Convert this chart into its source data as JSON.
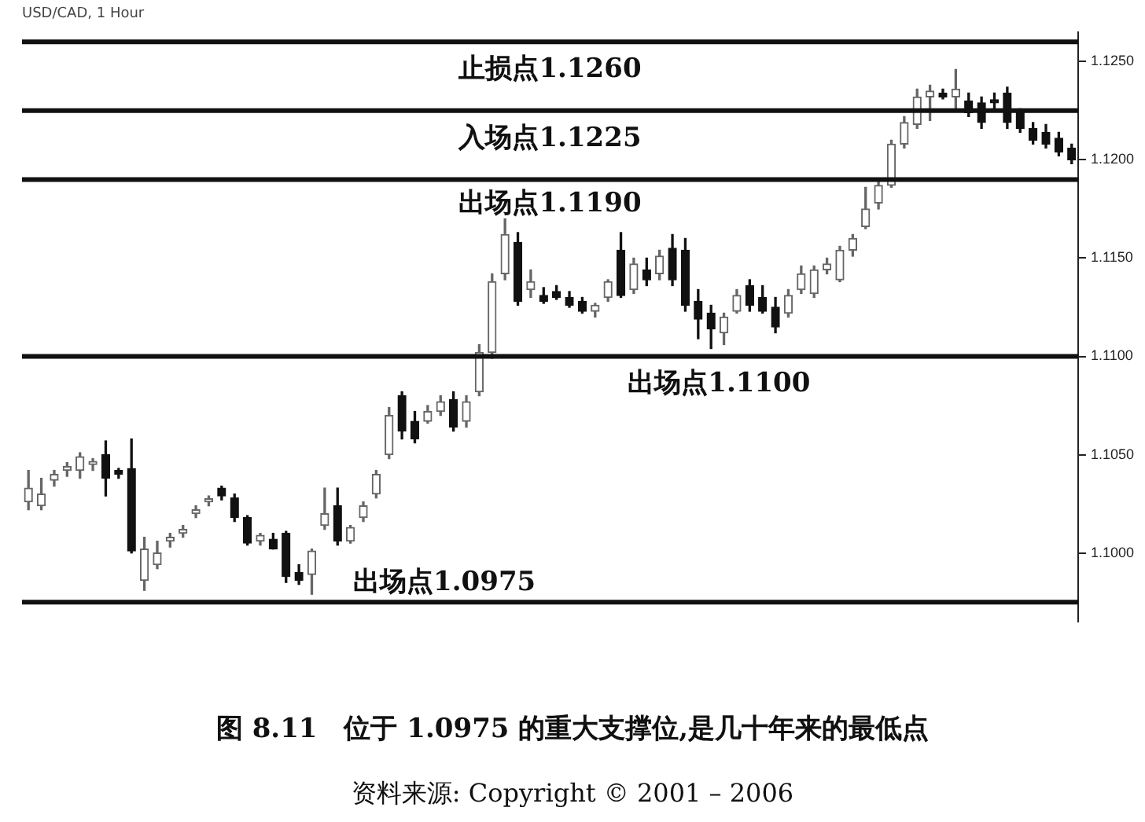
{
  "chart_data": {
    "type": "candlestick",
    "title": "图 8.11　位于 1.0975 的重大支撑位,是几十年来的最低点",
    "subtitle": "USD/CAD, 1 Hour",
    "annotations": [
      "资料来源: Copyright © 2001 – 2006"
    ],
    "categories": [
      null,
      null,
      null,
      null,
      null,
      null,
      null,
      null,
      null,
      null,
      null,
      null,
      null,
      null,
      null,
      null,
      null,
      null,
      null,
      null,
      null,
      null,
      null,
      null,
      null,
      null,
      null,
      null,
      null,
      null,
      null,
      null,
      null,
      null,
      null,
      null,
      null,
      null,
      null,
      null,
      null,
      null,
      null,
      null,
      null,
      null,
      null,
      null,
      null,
      null,
      null,
      null,
      null,
      null,
      null,
      null,
      null,
      null,
      null,
      null,
      null,
      null,
      null,
      null,
      null,
      null,
      null,
      null,
      null,
      null,
      null,
      null,
      null,
      null,
      null,
      null,
      null,
      null,
      null,
      null,
      null,
      null
    ],
    "ohlc": [
      [
        1.1026,
        1.1042,
        1.1022,
        1.1033
      ],
      [
        1.1024,
        1.1038,
        1.1022,
        1.103
      ],
      [
        1.1037,
        1.1042,
        1.1034,
        1.104
      ],
      [
        1.1042,
        1.1046,
        1.1039,
        1.1044
      ],
      [
        1.1042,
        1.1051,
        1.1038,
        1.1049
      ],
      [
        1.1045,
        1.1048,
        1.1042,
        1.1046
      ],
      [
        1.105,
        1.1057,
        1.1029,
        1.1038
      ],
      [
        1.1042,
        1.1043,
        1.1038,
        1.104
      ],
      [
        1.1043,
        1.1058,
        1.1,
        1.1001
      ],
      [
        1.0986,
        1.1008,
        1.0981,
        1.1002
      ],
      [
        1.0994,
        1.1006,
        1.0992,
        1.1
      ],
      [
        1.1006,
        1.101,
        1.1003,
        1.1008
      ],
      [
        1.101,
        1.1014,
        1.1008,
        1.1012
      ],
      [
        1.102,
        1.1024,
        1.1018,
        1.1022
      ],
      [
        1.1026,
        1.1029,
        1.1024,
        1.1027
      ],
      [
        1.1033,
        1.1034,
        1.1027,
        1.1029
      ],
      [
        1.1028,
        1.103,
        1.1016,
        1.1018
      ],
      [
        1.1018,
        1.1019,
        1.1004,
        1.1005
      ],
      [
        1.1006,
        1.101,
        1.1004,
        1.1009
      ],
      [
        1.1007,
        1.101,
        1.1002,
        1.1002
      ],
      [
        1.101,
        1.1011,
        1.0985,
        1.0988
      ],
      [
        1.099,
        1.0994,
        1.0984,
        1.0986
      ],
      [
        1.0989,
        1.1002,
        1.0979,
        1.1001
      ],
      [
        1.1014,
        1.1033,
        1.1012,
        1.102
      ],
      [
        1.1024,
        1.1033,
        1.1004,
        1.1006
      ],
      [
        1.1006,
        1.1014,
        1.1005,
        1.1013
      ],
      [
        1.1018,
        1.1026,
        1.1016,
        1.1024
      ],
      [
        1.103,
        1.1042,
        1.1028,
        1.104
      ],
      [
        1.105,
        1.1074,
        1.1048,
        1.107
      ],
      [
        1.108,
        1.1082,
        1.1058,
        1.1062
      ],
      [
        1.1067,
        1.1072,
        1.1056,
        1.1058
      ],
      [
        1.1067,
        1.1075,
        1.1066,
        1.1072
      ],
      [
        1.1072,
        1.108,
        1.107,
        1.1077
      ],
      [
        1.1078,
        1.1082,
        1.1062,
        1.1064
      ],
      [
        1.1067,
        1.108,
        1.1064,
        1.1077
      ],
      [
        1.1082,
        1.1106,
        1.108,
        1.1102
      ],
      [
        1.1102,
        1.1142,
        1.1099,
        1.1138
      ],
      [
        1.1142,
        1.117,
        1.1139,
        1.1162
      ],
      [
        1.1158,
        1.1163,
        1.1126,
        1.1128
      ],
      [
        1.1134,
        1.1144,
        1.113,
        1.1138
      ],
      [
        1.1131,
        1.1135,
        1.1127,
        1.1128
      ],
      [
        1.1133,
        1.1136,
        1.1129,
        1.113
      ],
      [
        1.113,
        1.1133,
        1.1125,
        1.1126
      ],
      [
        1.1128,
        1.113,
        1.1122,
        1.1123
      ],
      [
        1.1123,
        1.1127,
        1.112,
        1.1126
      ],
      [
        1.113,
        1.1139,
        1.1128,
        1.1138
      ],
      [
        1.1154,
        1.1163,
        1.113,
        1.1131
      ],
      [
        1.1134,
        1.115,
        1.1132,
        1.1147
      ],
      [
        1.1144,
        1.115,
        1.1136,
        1.1139
      ],
      [
        1.1142,
        1.1154,
        1.1139,
        1.1151
      ],
      [
        1.1155,
        1.1162,
        1.1136,
        1.1139
      ],
      [
        1.1154,
        1.116,
        1.1123,
        1.1126
      ],
      [
        1.1128,
        1.1134,
        1.1109,
        1.1119
      ],
      [
        1.1122,
        1.1126,
        1.1104,
        1.1114
      ],
      [
        1.1112,
        1.1122,
        1.1106,
        1.112
      ],
      [
        1.1123,
        1.1134,
        1.1122,
        1.1131
      ],
      [
        1.1136,
        1.1139,
        1.1123,
        1.1126
      ],
      [
        1.113,
        1.1136,
        1.1122,
        1.1123
      ],
      [
        1.1125,
        1.113,
        1.1112,
        1.1115
      ],
      [
        1.1122,
        1.1134,
        1.112,
        1.1131
      ],
      [
        1.1134,
        1.1146,
        1.1132,
        1.1142
      ],
      [
        1.1132,
        1.1146,
        1.113,
        1.1144
      ],
      [
        1.1144,
        1.115,
        1.1142,
        1.1147
      ],
      [
        1.1139,
        1.1156,
        1.1138,
        1.1154
      ],
      [
        1.1154,
        1.1162,
        1.1151,
        1.116
      ],
      [
        1.1166,
        1.1186,
        1.1165,
        1.1175
      ],
      [
        1.1178,
        1.119,
        1.1175,
        1.1187
      ],
      [
        1.1187,
        1.121,
        1.1186,
        1.1208
      ],
      [
        1.1208,
        1.1222,
        1.1206,
        1.1219
      ],
      [
        1.1218,
        1.1236,
        1.1216,
        1.1232
      ],
      [
        1.1232,
        1.1238,
        1.122,
        1.1235
      ],
      [
        1.1234,
        1.1236,
        1.1231,
        1.1232
      ],
      [
        1.1232,
        1.1246,
        1.1226,
        1.1236
      ],
      [
        1.123,
        1.1234,
        1.1222,
        1.1224
      ],
      [
        1.1229,
        1.1232,
        1.1216,
        1.1219
      ],
      [
        1.123,
        1.1234,
        1.1226,
        1.1229
      ],
      [
        1.1234,
        1.1237,
        1.1216,
        1.1219
      ],
      [
        1.1224,
        1.1226,
        1.1214,
        1.1216
      ],
      [
        1.1216,
        1.1219,
        1.1208,
        1.121
      ],
      [
        1.1214,
        1.1218,
        1.1206,
        1.1208
      ],
      [
        1.1211,
        1.1214,
        1.1202,
        1.1204
      ],
      [
        1.1206,
        1.1208,
        1.1198,
        1.12
      ]
    ],
    "ylim": [
      1.0965,
      1.1265
    ],
    "yticks": [
      {
        "value": 1.1,
        "label": "1.1000"
      },
      {
        "value": 1.105,
        "label": "1.1050"
      },
      {
        "value": 1.11,
        "label": "1.1100"
      },
      {
        "value": 1.115,
        "label": "1.1150"
      },
      {
        "value": 1.12,
        "label": "1.1200"
      },
      {
        "value": 1.125,
        "label": "1.1250"
      }
    ],
    "tick_labels": "y",
    "grid": false,
    "legend": false,
    "ref_lines": [
      {
        "axis": "y",
        "value": 1.126,
        "label": "止损点1.1260",
        "color": "#111111"
      },
      {
        "axis": "y",
        "value": 1.1225,
        "label": "入场点1.1225",
        "color": "#111111"
      },
      {
        "axis": "y",
        "value": 1.119,
        "label": "出场点1.1190",
        "color": "#111111"
      },
      {
        "axis": "y",
        "value": 1.11,
        "label": "出场点1.1100",
        "color": "#111111"
      },
      {
        "axis": "y",
        "value": 1.0975,
        "label": "出场点1.0975",
        "color": "#111111"
      }
    ]
  }
}
